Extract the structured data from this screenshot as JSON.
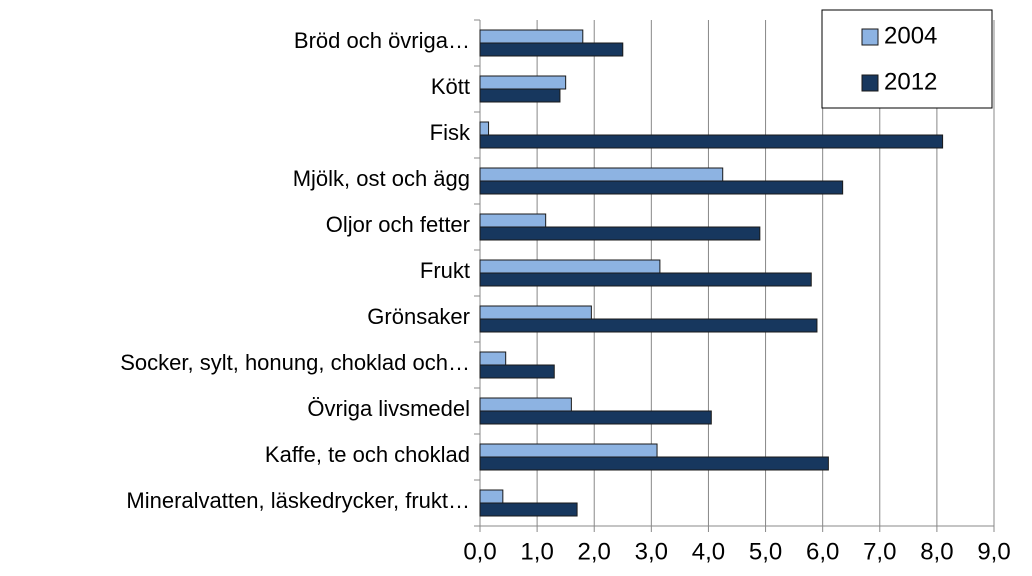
{
  "chart_data": {
    "type": "hbar",
    "categories": [
      "Bröd och övriga…",
      "Kött",
      "Fisk",
      "Mjölk, ost och ägg",
      "Oljor och fetter",
      "Frukt",
      "Grönsaker",
      "Socker, sylt, honung, choklad och…",
      "Övriga livsmedel",
      "Kaffe, te och choklad",
      "Mineralvatten, läskedrycker, frukt…"
    ],
    "series": [
      {
        "name": "2004",
        "color": "#8db3e2",
        "values": [
          1.8,
          1.5,
          0.15,
          4.25,
          1.15,
          3.15,
          1.95,
          0.45,
          1.6,
          3.1,
          0.4
        ]
      },
      {
        "name": "2012",
        "color": "#17375e",
        "values": [
          2.5,
          1.4,
          8.1,
          6.35,
          4.9,
          5.8,
          5.9,
          1.3,
          4.05,
          6.1,
          1.7
        ]
      }
    ],
    "xlim": [
      0,
      9
    ],
    "xticks": [
      {
        "value": 0,
        "label": "0,0"
      },
      {
        "value": 1,
        "label": "1,0"
      },
      {
        "value": 2,
        "label": "2,0"
      },
      {
        "value": 3,
        "label": "3,0"
      },
      {
        "value": 4,
        "label": "4,0"
      },
      {
        "value": 5,
        "label": "5,0"
      },
      {
        "value": 6,
        "label": "6,0"
      },
      {
        "value": 7,
        "label": "7,0"
      },
      {
        "value": 8,
        "label": "8,0"
      },
      {
        "value": 9,
        "label": "9,0"
      }
    ],
    "grid": true,
    "legend": "top-right"
  }
}
